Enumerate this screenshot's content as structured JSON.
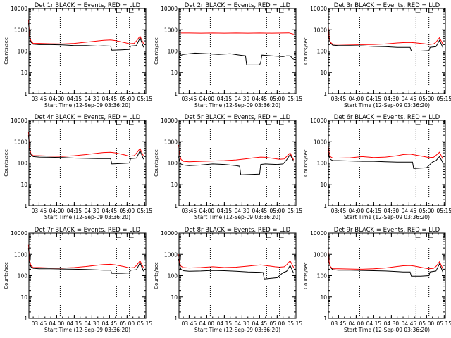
{
  "colors": {
    "events": "#000000",
    "lld": "#ff0000",
    "axes": "#000000",
    "marker": "#000000"
  },
  "chart_data": [
    {
      "type": "line",
      "title": "Det 1r BLACK = Events, RED = LLD",
      "xlabel": "Start Time (12-Sep-09 03:36:20)",
      "ylabel": "Counts/sec",
      "x_ticks": [
        "03:45",
        "04:00",
        "04:15",
        "04:30",
        "04:45",
        "05:00",
        "05:15"
      ],
      "y_ticks": [
        "1",
        "10",
        "100",
        "1000",
        "10000"
      ],
      "ylim": [
        1,
        10000
      ],
      "yscale": "log",
      "markers": [
        "04:03",
        "04:51",
        "05:02"
      ],
      "series": [
        {
          "x": [
            "03:36",
            "03:37",
            "03:38",
            "03:40",
            "03:45",
            "03:55",
            "04:05",
            "04:15",
            "04:25",
            "04:35",
            "04:40",
            "04:46",
            "04:47",
            "04:55",
            "05:02",
            "05:03",
            "05:08",
            "05:11",
            "05:14"
          ],
          "y": [
            2200,
            450,
            260,
            210,
            200,
            200,
            195,
            180,
            180,
            170,
            175,
            170,
            110,
            115,
            120,
            170,
            180,
            420,
            150
          ]
        },
        {
          "x": [
            "03:36",
            "03:37",
            "03:38",
            "03:40",
            "03:45",
            "03:55",
            "04:05",
            "04:15",
            "04:25",
            "04:35",
            "04:40",
            "04:46",
            "04:50",
            "04:58",
            "05:02",
            "05:06",
            "05:08",
            "05:11",
            "05:14"
          ],
          "y": [
            3000,
            500,
            300,
            230,
            230,
            220,
            215,
            230,
            260,
            300,
            320,
            330,
            310,
            250,
            220,
            230,
            300,
            500,
            220
          ]
        }
      ]
    },
    {
      "type": "line",
      "title": "Det 2r BLACK = Events, RED = LLD",
      "xlabel": "Start Time (12-Sep-09 03:36:20)",
      "ylabel": "Counts/sec",
      "x_ticks": [
        "03:45",
        "04:00",
        "04:15",
        "04:30",
        "04:45",
        "05:00",
        "05:15"
      ],
      "y_ticks": [
        "1",
        "10",
        "100",
        "1000",
        "10000"
      ],
      "ylim": [
        1,
        10000
      ],
      "yscale": "log",
      "markers": [
        "04:03",
        "04:51",
        "05:02"
      ],
      "series": [
        {
          "x": [
            "03:36",
            "03:37",
            "03:40",
            "03:50",
            "04:00",
            "04:10",
            "04:20",
            "04:28",
            "04:33",
            "04:34",
            "04:45",
            "04:46",
            "04:47",
            "04:55",
            "05:05",
            "05:08",
            "05:11",
            "05:14"
          ],
          "y": [
            45,
            60,
            70,
            80,
            75,
            70,
            75,
            65,
            60,
            22,
            22,
            30,
            65,
            60,
            55,
            60,
            60,
            40
          ]
        },
        {
          "x": [
            "03:36",
            "03:45",
            "03:55",
            "04:05",
            "04:15",
            "04:25",
            "04:35",
            "04:45",
            "04:55",
            "05:05",
            "05:10",
            "05:14"
          ],
          "y": [
            700,
            700,
            690,
            700,
            690,
            700,
            690,
            700,
            690,
            700,
            710,
            620
          ]
        }
      ]
    },
    {
      "type": "line",
      "title": "Det 3r BLACK = Events, RED = LLD",
      "xlabel": "Start Time (12-Sep-09 03:36:20)",
      "ylabel": "Counts/sec",
      "x_ticks": [
        "03:45",
        "04:00",
        "04:15",
        "04:30",
        "04:45",
        "05:00",
        "05:15"
      ],
      "y_ticks": [
        "1",
        "10",
        "100",
        "1000",
        "10000"
      ],
      "ylim": [
        1,
        10000
      ],
      "yscale": "log",
      "markers": [
        "04:03",
        "04:51",
        "05:02"
      ],
      "series": [
        {
          "x": [
            "03:36",
            "03:37",
            "03:38",
            "03:40",
            "03:45",
            "03:55",
            "04:05",
            "04:15",
            "04:25",
            "04:35",
            "04:40",
            "04:46",
            "04:47",
            "04:55",
            "05:02",
            "05:03",
            "05:08",
            "05:11",
            "05:14"
          ],
          "y": [
            2000,
            400,
            240,
            190,
            180,
            180,
            175,
            165,
            160,
            150,
            150,
            150,
            100,
            100,
            105,
            150,
            160,
            320,
            140
          ]
        },
        {
          "x": [
            "03:36",
            "03:37",
            "03:38",
            "03:40",
            "03:45",
            "03:55",
            "04:05",
            "04:15",
            "04:25",
            "04:35",
            "04:40",
            "04:46",
            "04:50",
            "04:58",
            "05:02",
            "05:06",
            "05:08",
            "05:11",
            "05:14"
          ],
          "y": [
            2500,
            450,
            260,
            210,
            210,
            205,
            200,
            205,
            215,
            240,
            250,
            255,
            245,
            220,
            205,
            215,
            260,
            420,
            200
          ]
        }
      ]
    },
    {
      "type": "line",
      "title": "Det 4r BLACK = Events, RED = LLD",
      "xlabel": "Start Time (12-Sep-09 03:36:20)",
      "ylabel": "Counts/sec",
      "x_ticks": [
        "03:45",
        "04:00",
        "04:15",
        "04:30",
        "04:45",
        "05:00",
        "05:15"
      ],
      "y_ticks": [
        "1",
        "10",
        "100",
        "1000",
        "10000"
      ],
      "ylim": [
        1,
        10000
      ],
      "yscale": "log",
      "markers": [
        "04:03",
        "04:51",
        "05:02"
      ],
      "series": [
        {
          "x": [
            "03:36",
            "03:37",
            "03:38",
            "03:40",
            "03:45",
            "03:55",
            "04:05",
            "04:15",
            "04:25",
            "04:35",
            "04:40",
            "04:46",
            "04:47",
            "04:55",
            "05:02",
            "05:03",
            "05:08",
            "05:11",
            "05:14"
          ],
          "y": [
            2000,
            420,
            250,
            200,
            190,
            185,
            180,
            170,
            165,
            160,
            160,
            160,
            90,
            95,
            100,
            160,
            170,
            380,
            150
          ]
        },
        {
          "x": [
            "03:36",
            "03:37",
            "03:38",
            "03:40",
            "03:45",
            "03:55",
            "04:05",
            "04:15",
            "04:25",
            "04:35",
            "04:40",
            "04:46",
            "04:50",
            "04:58",
            "05:02",
            "05:06",
            "05:08",
            "05:11",
            "05:14"
          ],
          "y": [
            2800,
            480,
            280,
            220,
            220,
            210,
            205,
            220,
            250,
            290,
            310,
            320,
            300,
            240,
            210,
            220,
            290,
            480,
            210
          ]
        }
      ]
    },
    {
      "type": "line",
      "title": "Det 5r BLACK = Events, RED = LLD",
      "xlabel": "Start Time (12-Sep-09 03:36:20)",
      "ylabel": "Counts/sec",
      "x_ticks": [
        "03:45",
        "04:00",
        "04:15",
        "04:30",
        "04:45",
        "05:00",
        "05:15"
      ],
      "y_ticks": [
        "1",
        "10",
        "100",
        "1000",
        "10000"
      ],
      "ylim": [
        1,
        10000
      ],
      "yscale": "log",
      "markers": [
        "04:03",
        "04:51",
        "05:02"
      ],
      "series": [
        {
          "x": [
            "03:36",
            "03:37",
            "03:38",
            "03:40",
            "03:45",
            "03:55",
            "04:05",
            "04:15",
            "04:25",
            "04:28",
            "04:29",
            "04:45",
            "04:46",
            "04:50",
            "05:00",
            "05:05",
            "05:08",
            "05:11",
            "05:14"
          ],
          "y": [
            200,
            120,
            90,
            80,
            75,
            80,
            90,
            85,
            75,
            70,
            28,
            30,
            85,
            90,
            85,
            90,
            140,
            250,
            120
          ]
        },
        {
          "x": [
            "03:36",
            "03:37",
            "03:38",
            "03:40",
            "03:45",
            "03:55",
            "04:05",
            "04:15",
            "04:25",
            "04:35",
            "04:40",
            "04:46",
            "04:50",
            "04:58",
            "05:02",
            "05:06",
            "05:08",
            "05:11",
            "05:14"
          ],
          "y": [
            700,
            250,
            150,
            120,
            115,
            120,
            125,
            130,
            140,
            160,
            175,
            190,
            185,
            160,
            150,
            155,
            200,
            300,
            140
          ]
        }
      ]
    },
    {
      "type": "line",
      "title": "Det 6r BLACK = Events, RED = LLD",
      "xlabel": "Start Time (12-Sep-09 03:36:20)",
      "ylabel": "Counts/sec",
      "x_ticks": [
        "03:45",
        "04:00",
        "04:15",
        "04:30",
        "04:45",
        "05:00",
        "05:15"
      ],
      "y_ticks": [
        "1",
        "10",
        "100",
        "1000",
        "10000"
      ],
      "ylim": [
        1,
        10000
      ],
      "yscale": "log",
      "markers": [
        "04:03",
        "04:51",
        "05:02"
      ],
      "series": [
        {
          "x": [
            "03:36",
            "03:37",
            "03:38",
            "03:40",
            "03:45",
            "03:55",
            "04:05",
            "04:15",
            "04:25",
            "04:35",
            "04:45",
            "04:48",
            "04:49",
            "04:55",
            "05:00",
            "05:05",
            "05:08",
            "05:11",
            "05:14"
          ],
          "y": [
            400,
            200,
            150,
            130,
            130,
            125,
            120,
            120,
            115,
            110,
            110,
            110,
            55,
            58,
            60,
            110,
            130,
            200,
            100
          ]
        },
        {
          "x": [
            "03:36",
            "03:37",
            "03:38",
            "03:40",
            "03:45",
            "03:55",
            "04:05",
            "04:15",
            "04:25",
            "04:35",
            "04:40",
            "04:46",
            "04:50",
            "04:58",
            "05:02",
            "05:06",
            "05:08",
            "05:11",
            "05:14"
          ],
          "y": [
            1000,
            300,
            200,
            170,
            170,
            175,
            200,
            180,
            190,
            220,
            250,
            260,
            240,
            200,
            180,
            185,
            230,
            320,
            150
          ]
        }
      ]
    },
    {
      "type": "line",
      "title": "Det 7r BLACK = Events, RED = LLD",
      "xlabel": "Start Time (12-Sep-09 03:36:20)",
      "ylabel": "Counts/sec",
      "x_ticks": [
        "03:45",
        "04:00",
        "04:15",
        "04:30",
        "04:45",
        "05:00",
        "05:15"
      ],
      "y_ticks": [
        "1",
        "10",
        "100",
        "1000",
        "10000"
      ],
      "ylim": [
        1,
        10000
      ],
      "yscale": "log",
      "markers": [
        "04:03",
        "04:51",
        "05:02"
      ],
      "series": [
        {
          "x": [
            "03:36",
            "03:37",
            "03:38",
            "03:40",
            "03:45",
            "03:55",
            "04:05",
            "04:15",
            "04:25",
            "04:35",
            "04:40",
            "04:46",
            "04:47",
            "04:55",
            "05:02",
            "05:03",
            "05:08",
            "05:11",
            "05:14"
          ],
          "y": [
            2000,
            420,
            260,
            220,
            210,
            210,
            205,
            200,
            195,
            185,
            180,
            180,
            130,
            130,
            135,
            180,
            190,
            400,
            160
          ]
        },
        {
          "x": [
            "03:36",
            "03:37",
            "03:38",
            "03:40",
            "03:45",
            "03:55",
            "04:05",
            "04:15",
            "04:25",
            "04:35",
            "04:40",
            "04:46",
            "04:50",
            "04:58",
            "05:02",
            "05:06",
            "05:08",
            "05:11",
            "05:14"
          ],
          "y": [
            2800,
            500,
            300,
            240,
            240,
            230,
            225,
            240,
            270,
            310,
            330,
            340,
            320,
            260,
            230,
            240,
            300,
            500,
            230
          ]
        }
      ]
    },
    {
      "type": "line",
      "title": "Det 8r BLACK = Events, RED = LLD",
      "xlabel": "Start Time (12-Sep-09 03:36:20)",
      "ylabel": "Counts/sec",
      "x_ticks": [
        "03:45",
        "04:00",
        "04:15",
        "04:30",
        "04:45",
        "05:00",
        "05:15"
      ],
      "y_ticks": [
        "1",
        "10",
        "100",
        "1000",
        "10000"
      ],
      "ylim": [
        1,
        10000
      ],
      "yscale": "log",
      "markers": [
        "04:03",
        "04:51",
        "05:02"
      ],
      "series": [
        {
          "x": [
            "03:36",
            "03:37",
            "03:38",
            "03:40",
            "03:45",
            "03:55",
            "04:05",
            "04:15",
            "04:25",
            "04:35",
            "04:45",
            "04:48",
            "04:49",
            "04:55",
            "05:00",
            "05:05",
            "05:08",
            "05:11",
            "05:14"
          ],
          "y": [
            600,
            300,
            200,
            170,
            160,
            165,
            175,
            170,
            160,
            150,
            145,
            140,
            70,
            75,
            80,
            140,
            160,
            300,
            130
          ]
        },
        {
          "x": [
            "03:36",
            "03:37",
            "03:38",
            "03:40",
            "03:45",
            "03:55",
            "04:05",
            "04:15",
            "04:25",
            "04:35",
            "04:40",
            "04:46",
            "04:50",
            "04:58",
            "05:02",
            "05:06",
            "05:08",
            "05:11",
            "05:14"
          ],
          "y": [
            1000,
            400,
            280,
            240,
            230,
            240,
            260,
            240,
            250,
            280,
            300,
            320,
            300,
            260,
            250,
            260,
            320,
            500,
            240
          ]
        }
      ]
    },
    {
      "type": "line",
      "title": "Det 9r BLACK = Events, RED = LLD",
      "xlabel": "Start Time (12-Sep-09 03:36:20)",
      "ylabel": "Counts/sec",
      "x_ticks": [
        "03:45",
        "04:00",
        "04:15",
        "04:30",
        "04:45",
        "05:00",
        "05:15"
      ],
      "y_ticks": [
        "1",
        "10",
        "100",
        "1000",
        "10000"
      ],
      "ylim": [
        1,
        10000
      ],
      "yscale": "log",
      "markers": [
        "04:03",
        "04:51",
        "05:02"
      ],
      "series": [
        {
          "x": [
            "03:36",
            "03:37",
            "03:38",
            "03:40",
            "03:45",
            "03:55",
            "04:05",
            "04:15",
            "04:25",
            "04:35",
            "04:40",
            "04:46",
            "04:47",
            "04:55",
            "05:02",
            "05:03",
            "05:08",
            "05:11",
            "05:14"
          ],
          "y": [
            2000,
            420,
            250,
            190,
            180,
            180,
            175,
            170,
            165,
            155,
            150,
            150,
            95,
            95,
            100,
            150,
            165,
            360,
            140
          ]
        },
        {
          "x": [
            "03:36",
            "03:37",
            "03:38",
            "03:40",
            "03:45",
            "03:55",
            "04:05",
            "04:15",
            "04:25",
            "04:35",
            "04:40",
            "04:46",
            "04:50",
            "04:58",
            "05:02",
            "05:06",
            "05:08",
            "05:11",
            "05:14"
          ],
          "y": [
            2500,
            450,
            270,
            210,
            210,
            205,
            200,
            210,
            230,
            270,
            290,
            300,
            280,
            230,
            210,
            220,
            270,
            450,
            200
          ]
        }
      ]
    }
  ]
}
